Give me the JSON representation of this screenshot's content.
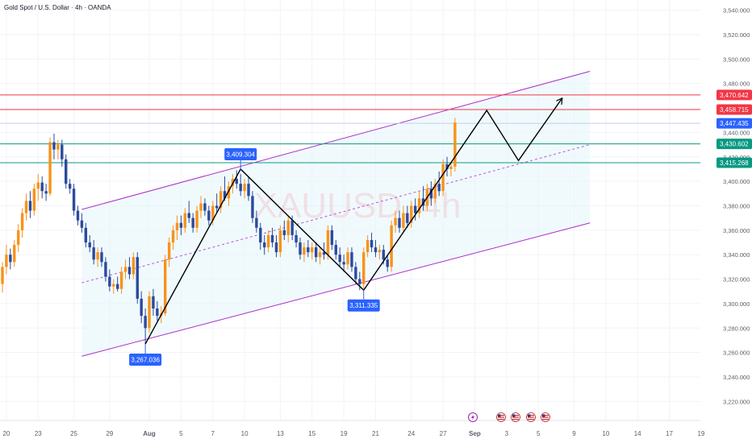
{
  "header": {
    "symbol": "Gold Spot / U.S. Dollar · 4h · OANDA"
  },
  "watermark": "XAUUSD, 4h",
  "colors": {
    "up": "#f7931a",
    "down": "#2b4a9e",
    "resistance": "#f23645",
    "support": "#089981",
    "current": "#2962ff",
    "channel": "#b02cc8",
    "channel_fill": "#e6f6fb",
    "path": "#000000",
    "label_bg": "#2962ff"
  },
  "price_axis": {
    "ticks": [
      "3,540.000",
      "3,520.000",
      "3,500.000",
      "3,480.000",
      "3,460.000",
      "3,440.000",
      "3,420.000",
      "3,400.000",
      "3,380.000",
      "3,360.000",
      "3,340.000",
      "3,320.000",
      "3,300.000",
      "3,280.000",
      "3,260.000",
      "3,240.000",
      "3,220.000"
    ],
    "range": [
      3213,
      3545
    ]
  },
  "price_tags": [
    {
      "label": "3,470.642",
      "value": 3470.642,
      "color": "#f23645"
    },
    {
      "label": "3,458.715",
      "value": 3458.715,
      "color": "#f23645"
    },
    {
      "label": "3,447.435",
      "value": 3447.435,
      "color": "#2962ff"
    },
    {
      "label": "3,430.602",
      "value": 3430.602,
      "color": "#089981"
    },
    {
      "label": "3,415.268",
      "value": 3415.268,
      "color": "#089981"
    }
  ],
  "horizontal_levels": [
    {
      "value": 3470.642,
      "color": "#f23645"
    },
    {
      "value": 3458.715,
      "color": "#f23645"
    },
    {
      "value": 3447.435,
      "color": "#c5cdf0"
    },
    {
      "value": 3430.602,
      "color": "#089981"
    },
    {
      "value": 3415.268,
      "color": "#089981"
    }
  ],
  "time_axis": {
    "ticks": [
      {
        "label": "20",
        "bar": 1
      },
      {
        "label": "23",
        "bar": 9
      },
      {
        "label": "25",
        "bar": 18
      },
      {
        "label": "29",
        "bar": 27
      },
      {
        "label": "Aug",
        "bar": 37,
        "bold": true
      },
      {
        "label": "5",
        "bar": 45
      },
      {
        "label": "7",
        "bar": 53
      },
      {
        "label": "10",
        "bar": 61
      },
      {
        "label": "13",
        "bar": 70
      },
      {
        "label": "15",
        "bar": 78
      },
      {
        "label": "19",
        "bar": 86
      },
      {
        "label": "21",
        "bar": 94
      },
      {
        "label": "24",
        "bar": 103
      },
      {
        "label": "27",
        "bar": 111
      },
      {
        "label": "Sep",
        "bar": 119,
        "bold": true
      },
      {
        "label": "3",
        "bar": 127
      },
      {
        "label": "5",
        "bar": 135
      },
      {
        "label": "9",
        "bar": 144
      },
      {
        "label": "10",
        "bar": 152
      },
      {
        "label": "14",
        "bar": 160
      },
      {
        "label": "17",
        "bar": 168
      },
      {
        "label": "19",
        "bar": 176
      }
    ],
    "events": [
      "lightning-icon",
      "us-flag-icon",
      "us-flag-icon",
      "us-flag-icon",
      "us-flag-icon"
    ]
  },
  "annotations": [
    {
      "label": "3,267.036",
      "bar": 36,
      "value": 3267.036,
      "position": "below"
    },
    {
      "label": "3,409.304",
      "bar": 60,
      "value": 3409.304,
      "position": "above"
    },
    {
      "label": "3,311.335",
      "bar": 91,
      "value": 3311.335,
      "position": "below"
    }
  ],
  "chart_data": {
    "type": "candlestick",
    "interval": "4h",
    "y_range": [
      3213,
      3545
    ],
    "bars_visible": 177,
    "candles": [
      {
        "o": 3316,
        "h": 3334,
        "l": 3309,
        "c": 3330
      },
      {
        "o": 3330,
        "h": 3348,
        "l": 3324,
        "c": 3340
      },
      {
        "o": 3340,
        "h": 3345,
        "l": 3328,
        "c": 3334
      },
      {
        "o": 3334,
        "h": 3352,
        "l": 3330,
        "c": 3348
      },
      {
        "o": 3348,
        "h": 3365,
        "l": 3342,
        "c": 3360
      },
      {
        "o": 3360,
        "h": 3378,
        "l": 3354,
        "c": 3374
      },
      {
        "o": 3374,
        "h": 3390,
        "l": 3368,
        "c": 3384
      },
      {
        "o": 3384,
        "h": 3392,
        "l": 3370,
        "c": 3376
      },
      {
        "o": 3376,
        "h": 3398,
        "l": 3372,
        "c": 3394
      },
      {
        "o": 3394,
        "h": 3406,
        "l": 3384,
        "c": 3399
      },
      {
        "o": 3399,
        "h": 3404,
        "l": 3386,
        "c": 3392
      },
      {
        "o": 3392,
        "h": 3398,
        "l": 3384,
        "c": 3390
      },
      {
        "o": 3390,
        "h": 3436,
        "l": 3388,
        "c": 3432
      },
      {
        "o": 3432,
        "h": 3439,
        "l": 3418,
        "c": 3426
      },
      {
        "o": 3426,
        "h": 3434,
        "l": 3418,
        "c": 3430
      },
      {
        "o": 3430,
        "h": 3434,
        "l": 3412,
        "c": 3418
      },
      {
        "o": 3418,
        "h": 3422,
        "l": 3394,
        "c": 3398
      },
      {
        "o": 3398,
        "h": 3402,
        "l": 3390,
        "c": 3394
      },
      {
        "o": 3394,
        "h": 3398,
        "l": 3372,
        "c": 3376
      },
      {
        "o": 3376,
        "h": 3380,
        "l": 3364,
        "c": 3368
      },
      {
        "o": 3368,
        "h": 3374,
        "l": 3358,
        "c": 3362
      },
      {
        "o": 3362,
        "h": 3366,
        "l": 3346,
        "c": 3350
      },
      {
        "o": 3350,
        "h": 3356,
        "l": 3342,
        "c": 3346
      },
      {
        "o": 3346,
        "h": 3352,
        "l": 3332,
        "c": 3336
      },
      {
        "o": 3336,
        "h": 3346,
        "l": 3330,
        "c": 3342
      },
      {
        "o": 3342,
        "h": 3346,
        "l": 3330,
        "c": 3334
      },
      {
        "o": 3334,
        "h": 3338,
        "l": 3318,
        "c": 3322
      },
      {
        "o": 3322,
        "h": 3328,
        "l": 3310,
        "c": 3314
      },
      {
        "o": 3314,
        "h": 3320,
        "l": 3308,
        "c": 3316
      },
      {
        "o": 3316,
        "h": 3322,
        "l": 3310,
        "c": 3312
      },
      {
        "o": 3312,
        "h": 3330,
        "l": 3308,
        "c": 3326
      },
      {
        "o": 3326,
        "h": 3336,
        "l": 3320,
        "c": 3330
      },
      {
        "o": 3330,
        "h": 3338,
        "l": 3320,
        "c": 3324
      },
      {
        "o": 3324,
        "h": 3342,
        "l": 3320,
        "c": 3338
      },
      {
        "o": 3338,
        "h": 3342,
        "l": 3300,
        "c": 3304
      },
      {
        "o": 3304,
        "h": 3310,
        "l": 3284,
        "c": 3290
      },
      {
        "o": 3290,
        "h": 3296,
        "l": 3267,
        "c": 3280
      },
      {
        "o": 3280,
        "h": 3310,
        "l": 3276,
        "c": 3306
      },
      {
        "o": 3306,
        "h": 3312,
        "l": 3290,
        "c": 3296
      },
      {
        "o": 3296,
        "h": 3302,
        "l": 3286,
        "c": 3290
      },
      {
        "o": 3290,
        "h": 3298,
        "l": 3284,
        "c": 3292
      },
      {
        "o": 3292,
        "h": 3340,
        "l": 3290,
        "c": 3336
      },
      {
        "o": 3336,
        "h": 3354,
        "l": 3330,
        "c": 3350
      },
      {
        "o": 3350,
        "h": 3364,
        "l": 3344,
        "c": 3360
      },
      {
        "o": 3360,
        "h": 3372,
        "l": 3352,
        "c": 3366
      },
      {
        "o": 3366,
        "h": 3372,
        "l": 3356,
        "c": 3362
      },
      {
        "o": 3362,
        "h": 3378,
        "l": 3358,
        "c": 3374
      },
      {
        "o": 3374,
        "h": 3384,
        "l": 3366,
        "c": 3370
      },
      {
        "o": 3370,
        "h": 3374,
        "l": 3358,
        "c": 3362
      },
      {
        "o": 3362,
        "h": 3380,
        "l": 3358,
        "c": 3376
      },
      {
        "o": 3376,
        "h": 3388,
        "l": 3370,
        "c": 3382
      },
      {
        "o": 3382,
        "h": 3386,
        "l": 3372,
        "c": 3376
      },
      {
        "o": 3376,
        "h": 3380,
        "l": 3364,
        "c": 3368
      },
      {
        "o": 3368,
        "h": 3384,
        "l": 3364,
        "c": 3380
      },
      {
        "o": 3380,
        "h": 3390,
        "l": 3374,
        "c": 3378
      },
      {
        "o": 3378,
        "h": 3396,
        "l": 3374,
        "c": 3392
      },
      {
        "o": 3392,
        "h": 3404,
        "l": 3384,
        "c": 3386
      },
      {
        "o": 3386,
        "h": 3400,
        "l": 3380,
        "c": 3396
      },
      {
        "o": 3396,
        "h": 3406,
        "l": 3390,
        "c": 3402
      },
      {
        "o": 3402,
        "h": 3409,
        "l": 3394,
        "c": 3398
      },
      {
        "o": 3398,
        "h": 3406,
        "l": 3388,
        "c": 3392
      },
      {
        "o": 3392,
        "h": 3402,
        "l": 3386,
        "c": 3398
      },
      {
        "o": 3398,
        "h": 3404,
        "l": 3384,
        "c": 3388
      },
      {
        "o": 3388,
        "h": 3392,
        "l": 3366,
        "c": 3370
      },
      {
        "o": 3370,
        "h": 3376,
        "l": 3358,
        "c": 3362
      },
      {
        "o": 3362,
        "h": 3366,
        "l": 3344,
        "c": 3350
      },
      {
        "o": 3350,
        "h": 3356,
        "l": 3340,
        "c": 3346
      },
      {
        "o": 3346,
        "h": 3360,
        "l": 3342,
        "c": 3356
      },
      {
        "o": 3356,
        "h": 3362,
        "l": 3346,
        "c": 3350
      },
      {
        "o": 3350,
        "h": 3356,
        "l": 3338,
        "c": 3342
      },
      {
        "o": 3342,
        "h": 3364,
        "l": 3338,
        "c": 3360
      },
      {
        "o": 3360,
        "h": 3368,
        "l": 3352,
        "c": 3356
      },
      {
        "o": 3356,
        "h": 3372,
        "l": 3350,
        "c": 3368
      },
      {
        "o": 3368,
        "h": 3372,
        "l": 3352,
        "c": 3356
      },
      {
        "o": 3356,
        "h": 3360,
        "l": 3346,
        "c": 3350
      },
      {
        "o": 3350,
        "h": 3354,
        "l": 3336,
        "c": 3340
      },
      {
        "o": 3340,
        "h": 3350,
        "l": 3334,
        "c": 3346
      },
      {
        "o": 3346,
        "h": 3352,
        "l": 3338,
        "c": 3342
      },
      {
        "o": 3342,
        "h": 3350,
        "l": 3336,
        "c": 3346
      },
      {
        "o": 3346,
        "h": 3350,
        "l": 3334,
        "c": 3338
      },
      {
        "o": 3338,
        "h": 3346,
        "l": 3332,
        "c": 3342
      },
      {
        "o": 3342,
        "h": 3350,
        "l": 3336,
        "c": 3340
      },
      {
        "o": 3340,
        "h": 3364,
        "l": 3336,
        "c": 3360
      },
      {
        "o": 3360,
        "h": 3364,
        "l": 3344,
        "c": 3348
      },
      {
        "o": 3348,
        "h": 3352,
        "l": 3336,
        "c": 3340
      },
      {
        "o": 3340,
        "h": 3346,
        "l": 3330,
        "c": 3334
      },
      {
        "o": 3334,
        "h": 3340,
        "l": 3326,
        "c": 3332
      },
      {
        "o": 3332,
        "h": 3346,
        "l": 3328,
        "c": 3342
      },
      {
        "o": 3342,
        "h": 3346,
        "l": 3326,
        "c": 3330
      },
      {
        "o": 3330,
        "h": 3334,
        "l": 3316,
        "c": 3320
      },
      {
        "o": 3320,
        "h": 3326,
        "l": 3311,
        "c": 3316
      },
      {
        "o": 3316,
        "h": 3346,
        "l": 3312,
        "c": 3342
      },
      {
        "o": 3342,
        "h": 3356,
        "l": 3338,
        "c": 3352
      },
      {
        "o": 3352,
        "h": 3358,
        "l": 3342,
        "c": 3346
      },
      {
        "o": 3346,
        "h": 3352,
        "l": 3338,
        "c": 3342
      },
      {
        "o": 3342,
        "h": 3348,
        "l": 3336,
        "c": 3344
      },
      {
        "o": 3344,
        "h": 3348,
        "l": 3332,
        "c": 3336
      },
      {
        "o": 3336,
        "h": 3340,
        "l": 3326,
        "c": 3330
      },
      {
        "o": 3330,
        "h": 3368,
        "l": 3326,
        "c": 3364
      },
      {
        "o": 3364,
        "h": 3376,
        "l": 3358,
        "c": 3370
      },
      {
        "o": 3370,
        "h": 3376,
        "l": 3358,
        "c": 3362
      },
      {
        "o": 3362,
        "h": 3380,
        "l": 3358,
        "c": 3374
      },
      {
        "o": 3374,
        "h": 3380,
        "l": 3362,
        "c": 3366
      },
      {
        "o": 3366,
        "h": 3384,
        "l": 3362,
        "c": 3380
      },
      {
        "o": 3380,
        "h": 3386,
        "l": 3368,
        "c": 3374
      },
      {
        "o": 3374,
        "h": 3392,
        "l": 3370,
        "c": 3386
      },
      {
        "o": 3386,
        "h": 3396,
        "l": 3376,
        "c": 3380
      },
      {
        "o": 3380,
        "h": 3398,
        "l": 3376,
        "c": 3394
      },
      {
        "o": 3394,
        "h": 3400,
        "l": 3380,
        "c": 3386
      },
      {
        "o": 3386,
        "h": 3402,
        "l": 3382,
        "c": 3398
      },
      {
        "o": 3398,
        "h": 3408,
        "l": 3388,
        "c": 3392
      },
      {
        "o": 3392,
        "h": 3418,
        "l": 3388,
        "c": 3414
      },
      {
        "o": 3414,
        "h": 3420,
        "l": 3404,
        "c": 3410
      },
      {
        "o": 3410,
        "h": 3416,
        "l": 3404,
        "c": 3412
      },
      {
        "o": 3412,
        "h": 3452,
        "l": 3408,
        "c": 3448
      }
    ],
    "channel": {
      "upper": {
        "from": {
          "bar": 20,
          "value": 3377
        },
        "to": {
          "bar": 148,
          "value": 3490
        }
      },
      "middle": {
        "from": {
          "bar": 20,
          "value": 3317
        },
        "to": {
          "bar": 148,
          "value": 3430
        }
      },
      "lower": {
        "from": {
          "bar": 20,
          "value": 3257
        },
        "to": {
          "bar": 148,
          "value": 3366
        }
      }
    },
    "projection_path": [
      {
        "bar": 36,
        "value": 3267
      },
      {
        "bar": 60,
        "value": 3410
      },
      {
        "bar": 91,
        "value": 3311
      },
      {
        "bar": 122,
        "value": 3458
      },
      {
        "bar": 130,
        "value": 3417
      },
      {
        "bar": 141,
        "value": 3468
      }
    ]
  }
}
